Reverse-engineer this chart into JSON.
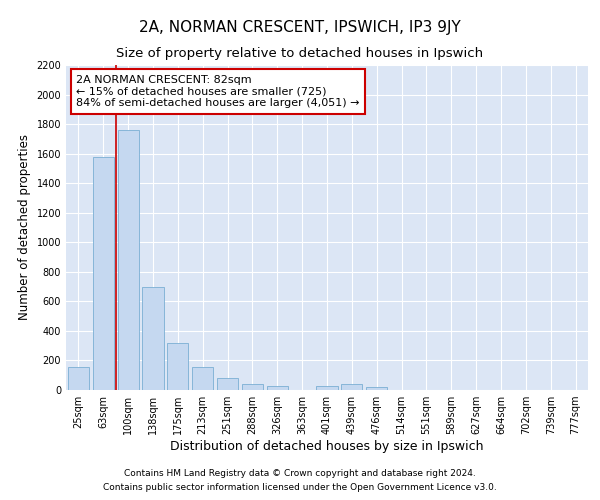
{
  "title1": "2A, NORMAN CRESCENT, IPSWICH, IP3 9JY",
  "title2": "Size of property relative to detached houses in Ipswich",
  "xlabel": "Distribution of detached houses by size in Ipswich",
  "ylabel": "Number of detached properties",
  "categories": [
    "25sqm",
    "63sqm",
    "100sqm",
    "138sqm",
    "175sqm",
    "213sqm",
    "251sqm",
    "288sqm",
    "326sqm",
    "363sqm",
    "401sqm",
    "439sqm",
    "476sqm",
    "514sqm",
    "551sqm",
    "589sqm",
    "627sqm",
    "664sqm",
    "702sqm",
    "739sqm",
    "777sqm"
  ],
  "values": [
    155,
    1580,
    1760,
    700,
    315,
    155,
    80,
    42,
    25,
    0,
    30,
    42,
    18,
    0,
    0,
    0,
    0,
    0,
    0,
    0,
    0
  ],
  "bar_color": "#c5d8f0",
  "bar_edge_color": "#7bafd4",
  "vline_x": 1.5,
  "vline_color": "#cc0000",
  "annotation_text": "2A NORMAN CRESCENT: 82sqm\n← 15% of detached houses are smaller (725)\n84% of semi-detached houses are larger (4,051) →",
  "annotation_box_color": "#ffffff",
  "annotation_box_edge": "#cc0000",
  "ylim": [
    0,
    2200
  ],
  "yticks": [
    0,
    200,
    400,
    600,
    800,
    1000,
    1200,
    1400,
    1600,
    1800,
    2000,
    2200
  ],
  "footer1": "Contains HM Land Registry data © Crown copyright and database right 2024.",
  "footer2": "Contains public sector information licensed under the Open Government Licence v3.0.",
  "background_color": "#ffffff",
  "plot_bg_color": "#dce6f5",
  "grid_color": "#ffffff",
  "title1_fontsize": 11,
  "title2_fontsize": 9.5,
  "tick_fontsize": 7,
  "ylabel_fontsize": 8.5,
  "xlabel_fontsize": 9,
  "footer_fontsize": 6.5,
  "annotation_fontsize": 8
}
